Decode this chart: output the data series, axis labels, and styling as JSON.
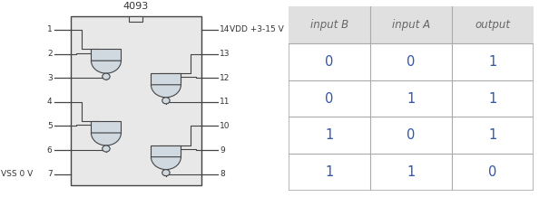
{
  "title": "4093",
  "ic_bg": "#e8e8e8",
  "ic_border": "#444444",
  "pin_labels_left": [
    "1",
    "2",
    "3",
    "4",
    "5",
    "6",
    "7"
  ],
  "pin_labels_right": [
    "14",
    "13",
    "12",
    "11",
    "10",
    "9",
    "8"
  ],
  "pin_annot_right": "VDD +3-15 V",
  "pin_annot_left": "VSS 0 V",
  "gate_fill": "#d0d8e0",
  "gate_stroke": "#444444",
  "bubble_fill": "#d0d8e0",
  "table_headers": [
    "input B",
    "input A",
    "output"
  ],
  "table_data": [
    [
      "0",
      "0",
      "1"
    ],
    [
      "0",
      "1",
      "1"
    ],
    [
      "1",
      "0",
      "1"
    ],
    [
      "1",
      "1",
      "0"
    ]
  ],
  "table_header_bg": "#e0e0e0",
  "table_cell_bg": "#ffffff",
  "table_border": "#aaaaaa",
  "header_text_color": "#666666",
  "cell_text_color": "#3355aa",
  "table_font_size": 8.5,
  "background_color": "#ffffff"
}
